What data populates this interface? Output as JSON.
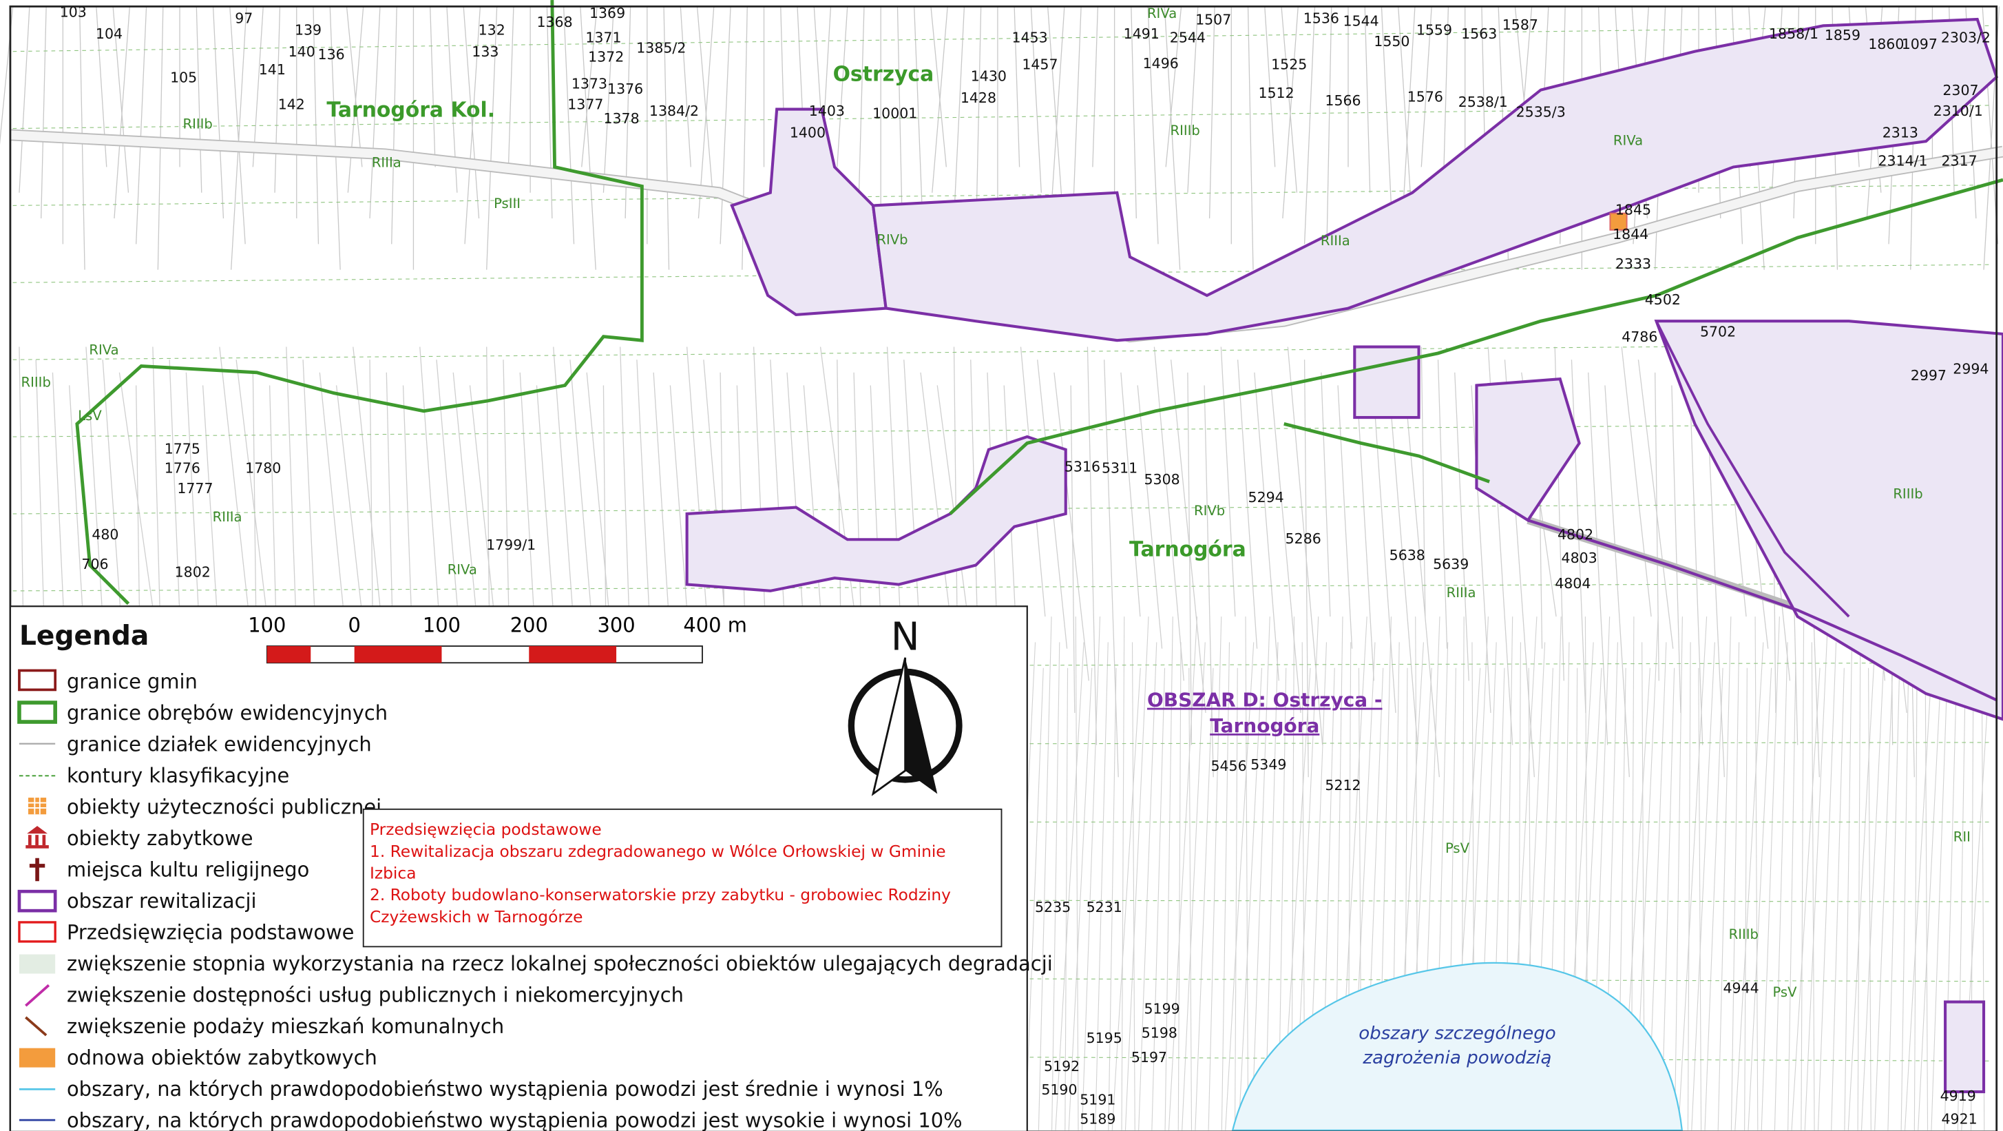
{
  "map": {
    "place_names": [
      "Tarnogóra Kol.",
      "Ostrzyca",
      "Tarnogóra"
    ],
    "area_title": [
      "OBSZAR D: Ostrzyca -",
      "Tarnogóra"
    ],
    "flood_label": [
      "obszary szczególnego",
      "zagrożenia powodzią"
    ],
    "parcels": [
      "103",
      "104",
      "97",
      "139",
      "140",
      "136",
      "132",
      "133",
      "1368",
      "1369",
      "1371",
      "1372",
      "1385/2",
      "105",
      "141",
      "142",
      "1373",
      "1376",
      "1377",
      "1378",
      "1384/2",
      "10001",
      "1403",
      "1400",
      "1430",
      "1428",
      "1453",
      "1457",
      "1491",
      "2544",
      "1496",
      "1507",
      "1525",
      "1536",
      "1544",
      "1550",
      "1559",
      "1563",
      "1587",
      "1512",
      "1566",
      "1576",
      "2538/1",
      "2535/3",
      "1858/1",
      "1859",
      "1860",
      "1097",
      "2303/2",
      "2307",
      "2310/1",
      "2313",
      "2314/1",
      "2317",
      "1845",
      "1844",
      "2333",
      "4502",
      "4786",
      "5702",
      "2997",
      "2994",
      "5316",
      "5311",
      "5308",
      "5294",
      "5286",
      "5638",
      "5639",
      "4802",
      "4803",
      "4804",
      "1799/1",
      "1802",
      "480",
      "706",
      "1775",
      "1776",
      "1777",
      "1780",
      "5456",
      "5349",
      "5212",
      "5231",
      "5235",
      "5199",
      "5198",
      "5197",
      "5195",
      "5192",
      "5190",
      "5191",
      "5189",
      "4944",
      "4919",
      "4921"
    ],
    "classes": [
      "RIIIa",
      "RIIIb",
      "RIVa",
      "RIVb",
      "RIIIa",
      "PsIII",
      "RIVa",
      "RIIIb",
      "LsV",
      "RIIIa",
      "RIVa",
      "RIIIb",
      "RIVb",
      "RIIIa",
      "PsV",
      "RIIIb",
      "PsV",
      "RII",
      "RIIIb",
      "RIVa"
    ]
  },
  "legend": {
    "title": "Legenda",
    "items": [
      "granice gmin",
      "granice obrębów ewidencyjnych",
      "granice działek ewidencyjnych",
      "kontury klasyfikacyjne",
      "obiekty użyteczności publicznej",
      "obiekty zabytkowe",
      "miejsca kultu religijnego",
      "obszar rewitalizacji",
      "Przedsięwzięcia podstawowe",
      "zwiększenie stopnia wykorzystania na rzecz lokalnej społeczności obiektów ulegających degradacji",
      "zwiększenie dostępności usług publicznych i niekomercyjnych",
      "zwiększenie podaży mieszkań komunalnych",
      "odnowa obiektów zabytkowych",
      "obszary, na których prawdopodobieństwo wystąpienia powodzi jest średnie i wynosi 1%",
      "obszary, na których prawdopodobieństwo wystąpienia powodzi jest wysokie i wynosi 10%"
    ]
  },
  "scale_bar": {
    "labels": [
      "100",
      "0",
      "100",
      "200",
      "300",
      "400 m"
    ]
  },
  "north_arrow": "N",
  "info_box": {
    "title": "Przedsięwzięcia podstawowe",
    "lines": [
      "1. Rewitalizacja obszaru zdegradowanego w Wólce Orłowskiej w Gminie",
      "Izbica",
      "2. Roboty budowlano-konserwatorskie przy zabytku - grobowiec Rodziny",
      "Czyżewskich w Tarnogórze"
    ]
  }
}
